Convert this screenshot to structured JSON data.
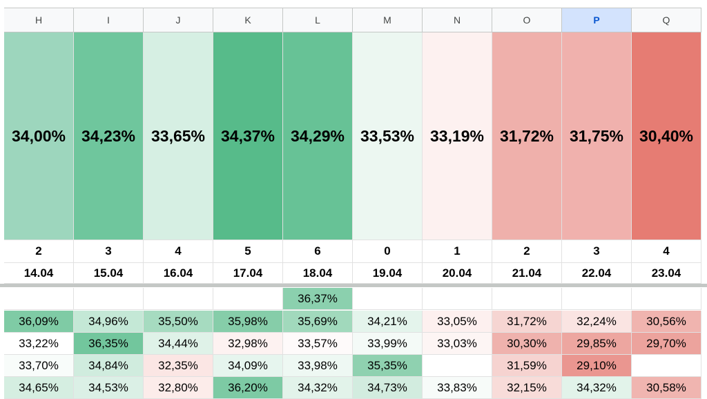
{
  "columns": [
    "H",
    "I",
    "J",
    "K",
    "L",
    "M",
    "N",
    "O",
    "P",
    "Q"
  ],
  "selected_column": "P",
  "summary": [
    {
      "text": "34,00%",
      "color": "#9dd6bd"
    },
    {
      "text": "34,23%",
      "color": "#6fc69d"
    },
    {
      "text": "33,65%",
      "color": "#d6efe3"
    },
    {
      "text": "34,37%",
      "color": "#57bb8a"
    },
    {
      "text": "34,29%",
      "color": "#67c296"
    },
    {
      "text": "33,53%",
      "color": "#ecf7f1"
    },
    {
      "text": "33,19%",
      "color": "#fdf1f0"
    },
    {
      "text": "31,72%",
      "color": "#efb0ab"
    },
    {
      "text": "31,75%",
      "color": "#f0b1ad"
    },
    {
      "text": "30,40%",
      "color": "#e67c73"
    }
  ],
  "weekday_row": [
    "2",
    "3",
    "4",
    "5",
    "6",
    "0",
    "1",
    "2",
    "3",
    "4"
  ],
  "date_row": [
    "14.04",
    "15.04",
    "16.04",
    "17.04",
    "18.04",
    "19.04",
    "20.04",
    "21.04",
    "22.04",
    "23.04"
  ],
  "data_rows": [
    [
      {
        "t": "",
        "c": "#ffffff"
      },
      {
        "t": "",
        "c": "#ffffff"
      },
      {
        "t": "",
        "c": "#ffffff"
      },
      {
        "t": "",
        "c": "#ffffff"
      },
      {
        "t": "36,37%",
        "c": "#8bd0ae"
      },
      {
        "t": "",
        "c": "#ffffff"
      },
      {
        "t": "",
        "c": "#ffffff"
      },
      {
        "t": "",
        "c": "#ffffff"
      },
      {
        "t": "",
        "c": "#ffffff"
      },
      {
        "t": "",
        "c": "#ffffff"
      }
    ],
    [
      {
        "t": "36,09%",
        "c": "#7fcba5"
      },
      {
        "t": "34,96%",
        "c": "#c4e8d6"
      },
      {
        "t": "35,50%",
        "c": "#a6dbc0"
      },
      {
        "t": "35,98%",
        "c": "#86cda9"
      },
      {
        "t": "35,69%",
        "c": "#a1d9bc"
      },
      {
        "t": "34,21%",
        "c": "#e4f4ec"
      },
      {
        "t": "33,05%",
        "c": "#fdf0ef"
      },
      {
        "t": "31,72%",
        "c": "#f6d5d2"
      },
      {
        "t": "32,24%",
        "c": "#fae4e2"
      },
      {
        "t": "30,56%",
        "c": "#f0b4af"
      }
    ],
    [
      {
        "t": "33,22%",
        "c": "#ffffff"
      },
      {
        "t": "36,35%",
        "c": "#72c69d"
      },
      {
        "t": "34,44%",
        "c": "#dff2e8"
      },
      {
        "t": "32,98%",
        "c": "#fdf2f1"
      },
      {
        "t": "33,57%",
        "c": "#fefafa"
      },
      {
        "t": "33,99%",
        "c": "#f4faf7"
      },
      {
        "t": "33,03%",
        "c": "#fdf5f4"
      },
      {
        "t": "30,30%",
        "c": "#efb2ad"
      },
      {
        "t": "29,85%",
        "c": "#eda6a0"
      },
      {
        "t": "29,70%",
        "c": "#eca39d"
      }
    ],
    [
      {
        "t": "33,70%",
        "c": "#f8fcfa"
      },
      {
        "t": "34,84%",
        "c": "#d0ecde"
      },
      {
        "t": "32,35%",
        "c": "#fbe6e4"
      },
      {
        "t": "34,09%",
        "c": "#e6f5ee"
      },
      {
        "t": "33,98%",
        "c": "#eef8f3"
      },
      {
        "t": "35,35%",
        "c": "#8fd1b0"
      },
      {
        "t": "",
        "c": "#ffffff"
      },
      {
        "t": "31,59%",
        "c": "#f6d3d0"
      },
      {
        "t": "29,10%",
        "c": "#ea9690"
      },
      {
        "t": "",
        "c": "#ffffff"
      }
    ],
    [
      {
        "t": "34,65%",
        "c": "#d5eee1"
      },
      {
        "t": "34,53%",
        "c": "#dbf0e6"
      },
      {
        "t": "32,80%",
        "c": "#fcecea"
      },
      {
        "t": "36,20%",
        "c": "#7dcaa4"
      },
      {
        "t": "34,32%",
        "c": "#e2f3ea"
      },
      {
        "t": "34,73%",
        "c": "#d2ecdf"
      },
      {
        "t": "33,83%",
        "c": "#f7fbf9"
      },
      {
        "t": "32,15%",
        "c": "#f8dcd9"
      },
      {
        "t": "34,32%",
        "c": "#e2f3ea"
      },
      {
        "t": "30,58%",
        "c": "#f0b5b0"
      }
    ]
  ]
}
